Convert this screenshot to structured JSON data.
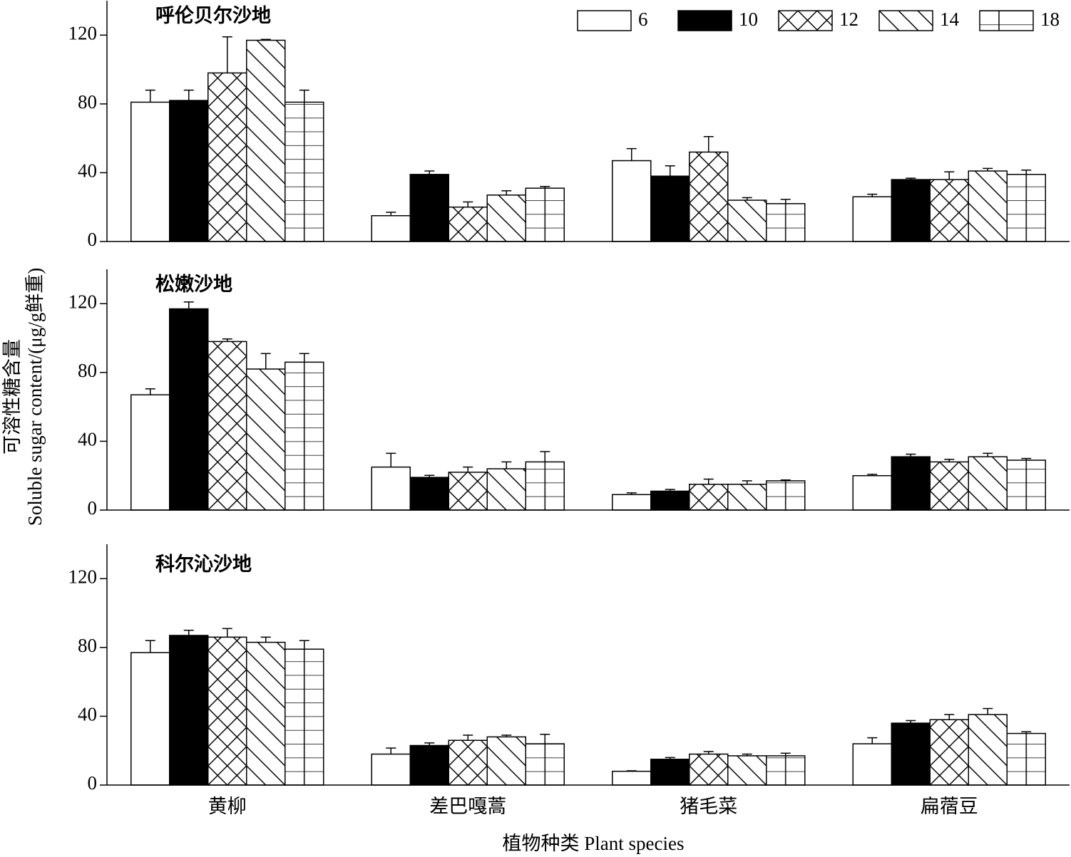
{
  "chart_data": [
    {
      "type": "bar",
      "title": "呼伦贝尔沙地",
      "ylim": [
        0,
        140
      ],
      "yticks": [
        0,
        40,
        80,
        120
      ],
      "series": [
        {
          "name": "6",
          "color": "#ffffff",
          "pattern": "none",
          "values": [
            81,
            15,
            47,
            26
          ],
          "errors": [
            7,
            2,
            7,
            1.5
          ]
        },
        {
          "name": "10",
          "color": "#000000",
          "pattern": "solid",
          "values": [
            82,
            39,
            38,
            36
          ],
          "errors": [
            6,
            2,
            6,
            0.8
          ]
        },
        {
          "name": "12",
          "color": "#ffffff",
          "pattern": "cross",
          "values": [
            98,
            20,
            52,
            36
          ],
          "errors": [
            21,
            3,
            9,
            4.5
          ]
        },
        {
          "name": "14",
          "color": "#ffffff",
          "pattern": "diagonal",
          "values": [
            117,
            27,
            24,
            41
          ],
          "errors": [
            0.5,
            2.5,
            1.5,
            1.5
          ]
        },
        {
          "name": "18",
          "color": "#ffffff",
          "pattern": "grid",
          "values": [
            81,
            31,
            22,
            39
          ],
          "errors": [
            7,
            1,
            2.5,
            2.5
          ]
        }
      ]
    },
    {
      "type": "bar",
      "title": "松嫩沙地",
      "ylim": [
        0,
        140
      ],
      "yticks": [
        0,
        40,
        80,
        120
      ],
      "y_label": "可溶性糖含量",
      "y_label_en": "Soluble sugar content/(μg/g鲜重)",
      "series": [
        {
          "values": [
            67,
            25,
            9,
            20
          ],
          "errors": [
            3.5,
            8,
            1,
            0.8
          ]
        },
        {
          "values": [
            117,
            19,
            11,
            31
          ],
          "errors": [
            4,
            1.2,
            1,
            1.5
          ]
        },
        {
          "values": [
            98,
            22,
            15,
            28
          ],
          "errors": [
            1.5,
            3,
            3,
            1.5
          ]
        },
        {
          "values": [
            82,
            24,
            15,
            31
          ],
          "errors": [
            9,
            4,
            2,
            2
          ]
        },
        {
          "values": [
            86,
            28,
            17,
            29
          ],
          "errors": [
            5,
            6,
            0.5,
            1
          ]
        }
      ]
    },
    {
      "type": "bar",
      "title": "科尔沁沙地",
      "ylim": [
        0,
        140
      ],
      "yticks": [
        0,
        40,
        80,
        120
      ],
      "categories": [
        "黄柳",
        "差巴嘎蒿",
        "猪毛菜",
        "扁蓿豆"
      ],
      "x_label": "植物种类 Plant species",
      "series": [
        {
          "values": [
            77,
            18,
            8,
            24
          ],
          "errors": [
            7,
            3.5,
            0.3,
            3.5
          ]
        },
        {
          "values": [
            87,
            23,
            15,
            36
          ],
          "errors": [
            3,
            1.5,
            1,
            1.5
          ]
        },
        {
          "values": [
            86,
            26,
            18,
            38
          ],
          "errors": [
            5,
            3,
            1.5,
            3
          ]
        },
        {
          "values": [
            83,
            28,
            17,
            41
          ],
          "errors": [
            3,
            1,
            1,
            3.5
          ]
        },
        {
          "values": [
            79,
            24,
            17,
            30
          ],
          "errors": [
            5,
            5.5,
            1.5,
            1
          ]
        }
      ]
    }
  ]
}
